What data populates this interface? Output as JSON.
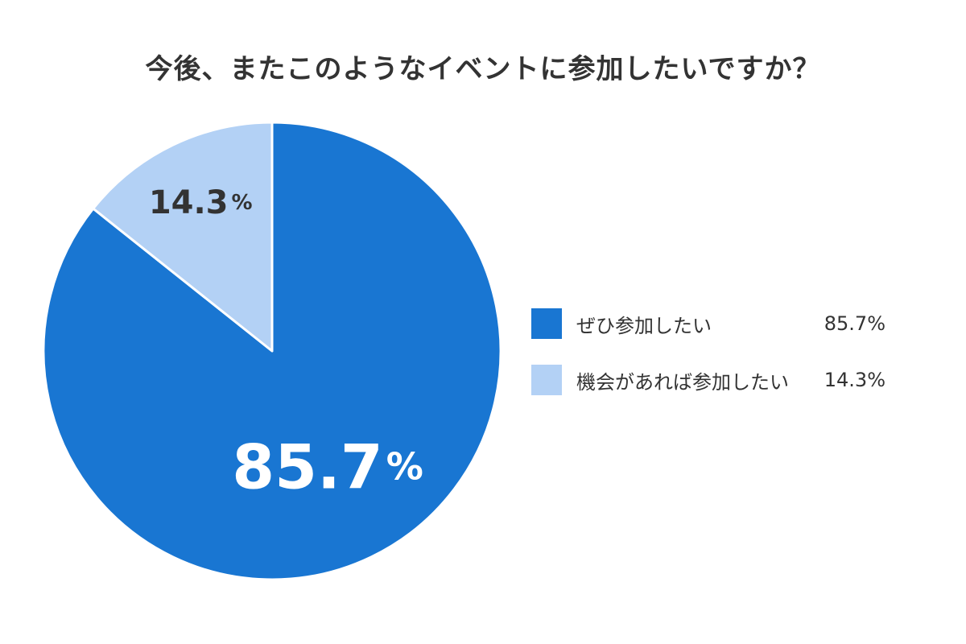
{
  "chart_data": {
    "type": "pie",
    "title": "今後、またこのようなイベントに参加したいですか？",
    "slices": [
      {
        "label": "ぜひ参加したい",
        "value": 85.7,
        "display": "85.7%",
        "number": "85.7",
        "unit": "%",
        "color": "#1976D2"
      },
      {
        "label": "機会があれば参加したい",
        "value": 14.3,
        "display": "14.3%",
        "number": "14.3",
        "unit": "%",
        "color": "#B3D1F5"
      }
    ],
    "legend_position": "right"
  },
  "colors": {
    "slice_label_on_dark": "#ffffff",
    "slice_label_on_light": "#333333",
    "separator": "#ffffff"
  }
}
